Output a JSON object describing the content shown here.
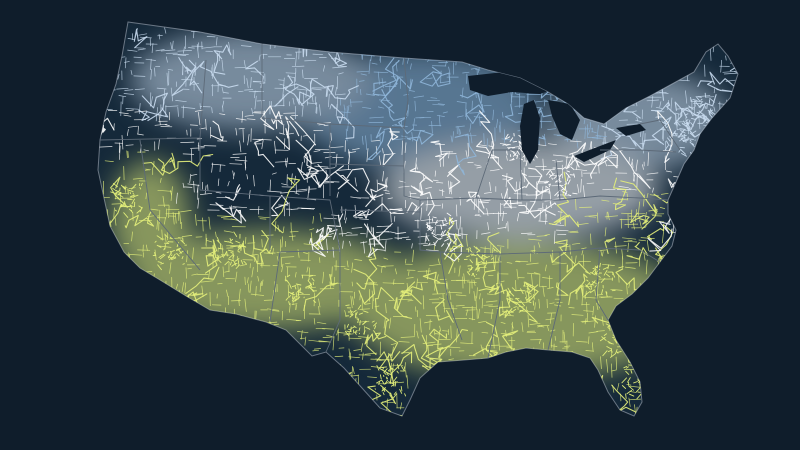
{
  "map": {
    "region": "contiguous-united-states",
    "style": "road-network snow-cover map",
    "colors": {
      "background": "#0f1d2b",
      "land": "#15293a",
      "border": "#5d6a78",
      "snow_heavy": "#8fb6d9",
      "snow_light": "#c9dcef",
      "no_snow": "#ffffff",
      "warm": "#e4f07a",
      "warm_bright": "#eef59a"
    },
    "zones": [
      {
        "name": "north-heavy",
        "color_key": "snow_heavy"
      },
      {
        "name": "north-light",
        "color_key": "snow_light"
      },
      {
        "name": "central-clear",
        "color_key": "no_snow"
      },
      {
        "name": "south-warm",
        "color_key": "warm"
      }
    ],
    "legend": [],
    "labels": []
  }
}
